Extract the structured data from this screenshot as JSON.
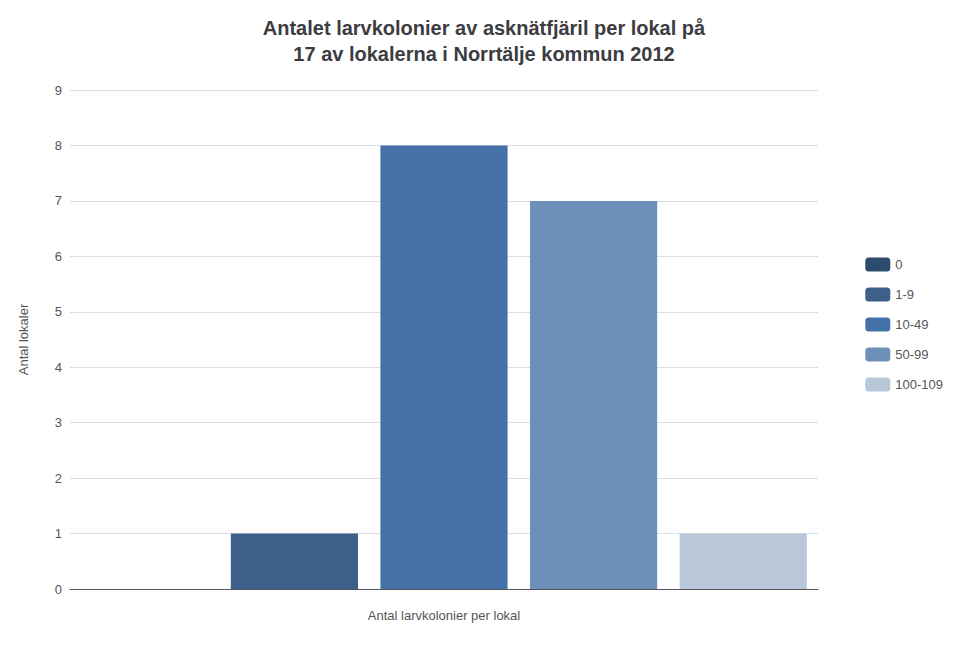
{
  "chart_data": {
    "type": "bar",
    "title": "Antalet larvkolonier av asknätfjäril per lokal på\n17 av lokalerna i Norrtälje kommun 2012",
    "xlabel": "Antal larvkolonier per lokal",
    "ylabel": "Antal lokaler",
    "categories": [
      "0",
      "1-9",
      "10-49",
      "50-99",
      "100-109"
    ],
    "values": [
      0,
      1,
      8,
      7,
      1
    ],
    "colors": [
      "#2d4b6e",
      "#3d5f8a",
      "#4472a8",
      "#6e90b8",
      "#b8c8d8"
    ],
    "ylim": [
      0,
      9
    ],
    "yticks": [
      0,
      1,
      2,
      3,
      4,
      5,
      6,
      7,
      8,
      9
    ],
    "grid": true,
    "legend": "right",
    "tick_labels": "y"
  }
}
